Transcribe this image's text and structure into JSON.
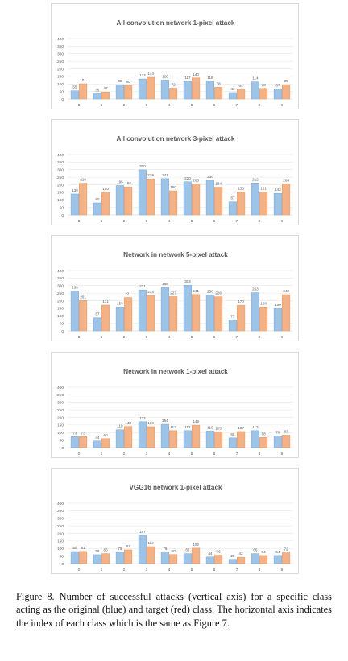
{
  "chart_data": [
    {
      "type": "bar",
      "title": "All convolution network 1-pixel attack",
      "categories": [
        "0",
        "1",
        "2",
        "3",
        "4",
        "5",
        "6",
        "7",
        "8",
        "9"
      ],
      "ylim": [
        0,
        400
      ],
      "yticks": [
        "0",
        "50",
        "100",
        "150",
        "200",
        "250",
        "300",
        "350",
        "400"
      ],
      "grid": true,
      "series": [
        {
          "values": [
            55,
            35,
            95,
            133,
            126,
            117,
            118,
            43,
            114,
            67
          ]
        },
        {
          "values": [
            101,
            47,
            90,
            144,
            72,
            140,
            78,
            64,
            70,
            95
          ]
        }
      ]
    },
    {
      "type": "bar",
      "title": "All convolution network 3-pixel attack",
      "categories": [
        "0",
        "1",
        "2",
        "3",
        "4",
        "5",
        "6",
        "7",
        "8",
        "9"
      ],
      "ylim": [
        0,
        400
      ],
      "yticks": [
        "0",
        "50",
        "100",
        "150",
        "200",
        "250",
        "300",
        "350",
        "400"
      ],
      "grid": true,
      "series": [
        {
          "values": [
            139,
            80,
            195,
            300,
            241,
            220,
            230,
            87,
            212,
            143
          ]
        },
        {
          "values": [
            210,
            150,
            186,
            239,
            160,
            205,
            184,
            153,
            151,
            206
          ]
        }
      ]
    },
    {
      "type": "bar",
      "title": "Network in network 5-pixel attack",
      "categories": [
        "0",
        "1",
        "2",
        "3",
        "4",
        "5",
        "6",
        "7",
        "8",
        "9"
      ],
      "ylim": [
        0,
        400
      ],
      "yticks": [
        "0",
        "50",
        "100",
        "150",
        "200",
        "250",
        "300",
        "350",
        "400"
      ],
      "grid": true,
      "series": [
        {
          "values": [
            265,
            87,
            158,
            271,
            288,
            303,
            238,
            73,
            253,
            150
          ]
        },
        {
          "values": [
            201,
            171,
            221,
            234,
            227,
            241,
            226,
            170,
            158,
            240
          ]
        }
      ]
    },
    {
      "type": "bar",
      "title": "Network in network 1-pixel attack",
      "categories": [
        "0",
        "1",
        "2",
        "3",
        "4",
        "5",
        "6",
        "7",
        "8",
        "9"
      ],
      "ylim": [
        0,
        400
      ],
      "yticks": [
        "0",
        "50",
        "100",
        "150",
        "200",
        "250",
        "300",
        "350",
        "400"
      ],
      "grid": true,
      "series": [
        {
          "values": [
            73,
            44,
            119,
            172,
            154,
            113,
            110,
            65,
            113,
            78
          ]
        },
        {
          "values": [
            73,
            60,
            140,
            139,
            113,
            149,
            105,
            107,
            68,
            83
          ]
        }
      ]
    },
    {
      "type": "bar",
      "title": "VGG16 network 1-pixel attack",
      "categories": [
        "0",
        "1",
        "2",
        "3",
        "4",
        "5",
        "6",
        "7",
        "8",
        "9"
      ],
      "ylim": [
        0,
        400
      ],
      "yticks": [
        "0",
        "50",
        "100",
        "150",
        "200",
        "250",
        "300",
        "350",
        "400"
      ],
      "grid": true,
      "series": [
        {
          "values": [
            80,
            59,
            75,
            187,
            76,
            66,
            44,
            28,
            66,
            54
          ]
        },
        {
          "values": [
            81,
            66,
            91,
            112,
            60,
            102,
            56,
            42,
            54,
            72
          ]
        }
      ]
    }
  ],
  "colors": {
    "original": "#9dc3e6",
    "target": "#f4b183",
    "grid": "#e3e3e3",
    "text": "#595959"
  },
  "caption": "Figure 8. Number of successful attacks (vertical axis) for a specific class acting as the original (blue) and target (red) class. The horizontal axis indicates the index of each class which is the same as Figure 7."
}
